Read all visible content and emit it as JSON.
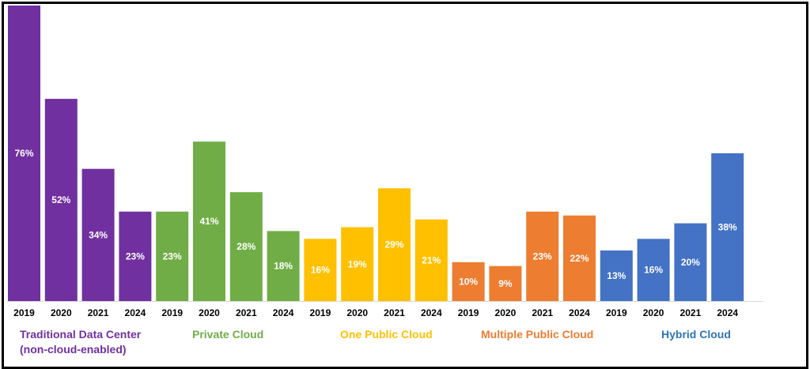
{
  "chart_data": {
    "type": "bar",
    "title": "",
    "xlabel": "",
    "ylabel": "",
    "ylim": [
      0,
      76
    ],
    "grid": false,
    "legend": "none",
    "groups": [
      {
        "name": "Traditional Data Center",
        "name_line2": "(non-cloud-enabled)",
        "color": "#7030A0",
        "categories": [
          "2019",
          "2020",
          "2021",
          "2024"
        ],
        "values": [
          76,
          52,
          34,
          23
        ],
        "labels": [
          "76%",
          "52%",
          "34%",
          "23%"
        ]
      },
      {
        "name": "Private Cloud",
        "name_line2": "",
        "color": "#70AD47",
        "categories": [
          "2019",
          "2020",
          "2021",
          "2024"
        ],
        "values": [
          23,
          41,
          28,
          18
        ],
        "labels": [
          "23%",
          "41%",
          "28%",
          "18%"
        ]
      },
      {
        "name": "One Public Cloud",
        "name_line2": "",
        "color": "#FFC000",
        "categories": [
          "2019",
          "2020",
          "2021",
          "2024"
        ],
        "values": [
          16,
          19,
          29,
          21
        ],
        "labels": [
          "16%",
          "19%",
          "29%",
          "21%"
        ]
      },
      {
        "name": "Multiple Public Cloud",
        "name_line2": "",
        "color": "#ED7D31",
        "categories": [
          "2019",
          "2020",
          "2021",
          "2024"
        ],
        "values": [
          10,
          9,
          23,
          22
        ],
        "labels": [
          "10%",
          "9%",
          "23%",
          "22%"
        ]
      },
      {
        "name": "Hybrid Cloud",
        "name_line2": "",
        "color": "#4472C4",
        "categories": [
          "2019",
          "2020",
          "2021",
          "2024"
        ],
        "values": [
          13,
          16,
          20,
          38
        ],
        "labels": [
          "13%",
          "16%",
          "20%",
          "38%"
        ]
      }
    ]
  }
}
